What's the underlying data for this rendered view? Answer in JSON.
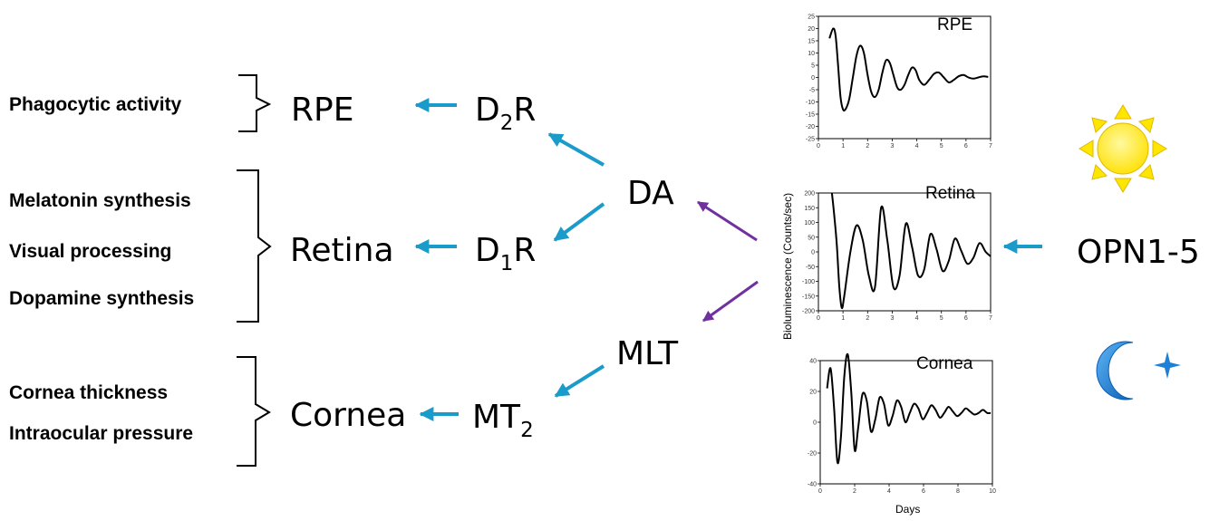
{
  "functions": {
    "phagocytic": "Phagocytic activity",
    "melatonin": "Melatonin synthesis",
    "visual": "Visual processing",
    "dopamine": "Dopamine synthesis",
    "cornea_thickness": "Cornea thickness",
    "iop": "Intraocular pressure"
  },
  "tissues": {
    "rpe": "RPE",
    "retina": "Retina",
    "cornea": "Cornea"
  },
  "receptors": {
    "d2r": {
      "main": "D",
      "sub": "2",
      "tail": "R"
    },
    "d1r": {
      "main": "D",
      "sub": "1",
      "tail": "R"
    },
    "mt2": {
      "main": "MT",
      "sub": "2",
      "tail": ""
    }
  },
  "signals": {
    "da": "DA",
    "mlt": "MLT"
  },
  "opsins": "OPN1-5",
  "icons": {
    "sun": "sun-icon",
    "moon": "crescent-moon-with-star-icon"
  },
  "colors": {
    "blue_arrow": "#1a9bc9",
    "purple_arrow": "#7030a0",
    "sun": "#ffe600",
    "moon": "#1e7fd6"
  },
  "shared_axes": {
    "ylabel": "Bioluminescence (Counts/sec)",
    "xlabel": "Days"
  },
  "chart_data": [
    {
      "type": "line",
      "title": "RPE",
      "xlim": [
        0,
        7
      ],
      "ylim": [
        -25,
        25
      ],
      "xticks": [
        "0",
        "1",
        "2",
        "3",
        "4",
        "5",
        "6",
        "7"
      ],
      "yticks": [
        "25",
        "20",
        "15",
        "10",
        "5",
        "0",
        "-5",
        "-10",
        "-15",
        "-20",
        "-25"
      ],
      "series": [
        {
          "x": [
            0.45,
            0.6,
            0.7,
            0.8,
            0.9,
            1.0,
            1.1,
            1.25,
            1.4,
            1.55,
            1.7,
            1.85,
            2.0,
            2.15,
            2.3,
            2.45,
            2.6,
            2.75,
            2.9,
            3.05,
            3.2,
            3.35,
            3.5,
            3.65,
            3.8,
            3.95,
            4.1,
            4.3,
            4.5,
            4.7,
            4.9,
            5.1,
            5.3,
            5.5,
            5.7,
            5.9,
            6.1,
            6.3,
            6.5,
            6.7,
            6.9
          ],
          "values": [
            16,
            20,
            17,
            5,
            -8,
            -13,
            -13,
            -9,
            0,
            9,
            13,
            10,
            1,
            -6,
            -8,
            -5,
            2,
            7,
            6,
            1,
            -4,
            -5,
            -3,
            1,
            4,
            3,
            -1,
            -3,
            -1,
            1.5,
            2,
            0,
            -2,
            -1,
            0.5,
            1,
            0,
            -0.5,
            0,
            0.5,
            0.2
          ]
        }
      ]
    },
    {
      "type": "line",
      "title": "Retina",
      "xlim": [
        0,
        7
      ],
      "ylim": [
        -200,
        200
      ],
      "xticks": [
        "0",
        "1",
        "2",
        "3",
        "4",
        "5",
        "6",
        "7"
      ],
      "yticks": [
        "200",
        "150",
        "100",
        "50",
        "0",
        "-50",
        "-100",
        "-150",
        "-200"
      ],
      "series": [
        {
          "x": [
            0.55,
            0.65,
            0.75,
            0.85,
            0.95,
            1.05,
            1.3,
            1.55,
            1.8,
            2.05,
            2.3,
            2.55,
            2.8,
            3.05,
            3.3,
            3.55,
            3.8,
            4.05,
            4.3,
            4.55,
            4.8,
            5.05,
            5.3,
            5.55,
            5.8,
            6.05,
            6.3,
            6.55,
            6.8,
            7.0
          ],
          "values": [
            200,
            120,
            20,
            -120,
            -190,
            -150,
            0,
            90,
            40,
            -80,
            -120,
            150,
            40,
            -120,
            -80,
            95,
            20,
            -80,
            -60,
            60,
            10,
            -65,
            -30,
            45,
            5,
            -40,
            -20,
            30,
            0,
            -15
          ]
        }
      ]
    },
    {
      "type": "line",
      "title": "Cornea",
      "xlim": [
        0,
        10
      ],
      "ylim": [
        -40,
        40
      ],
      "xticks": [
        "0",
        "2",
        "4",
        "6",
        "8",
        "10"
      ],
      "yticks": [
        "40",
        "20",
        "0",
        "-20",
        "-40"
      ],
      "series": [
        {
          "x": [
            0.4,
            0.6,
            0.8,
            1.0,
            1.2,
            1.4,
            1.6,
            1.8,
            2.0,
            2.2,
            2.45,
            2.7,
            2.95,
            3.2,
            3.45,
            3.7,
            3.95,
            4.2,
            4.45,
            4.7,
            4.95,
            5.2,
            5.45,
            5.7,
            5.95,
            6.2,
            6.45,
            6.7,
            6.95,
            7.2,
            7.45,
            7.7,
            7.95,
            8.2,
            8.45,
            8.7,
            8.95,
            9.2,
            9.45,
            9.7,
            9.9
          ],
          "values": [
            22,
            35,
            10,
            -26,
            -10,
            30,
            44,
            20,
            -18,
            -4,
            18,
            14,
            -6,
            2,
            16,
            12,
            -2,
            4,
            14,
            10,
            0,
            6,
            12,
            9,
            2,
            6,
            11,
            8,
            3,
            6,
            10,
            7,
            4,
            6,
            9,
            7,
            5,
            6,
            8,
            6,
            6
          ]
        }
      ]
    }
  ]
}
